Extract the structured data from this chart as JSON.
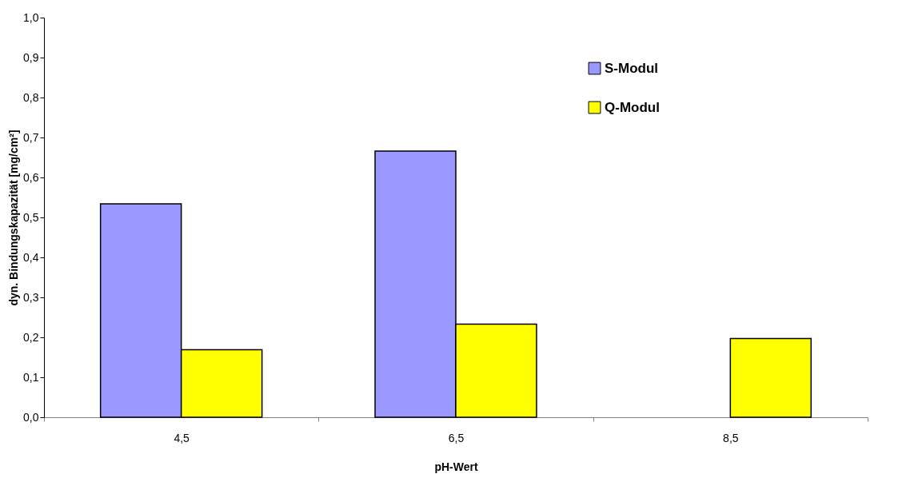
{
  "chart_data": {
    "type": "bar",
    "xlabel": "pH-Wert",
    "ylabel": "dyn. Bindungskapazität [mg/cm²]",
    "categories": [
      "4,5",
      "6,5",
      "8,5"
    ],
    "series": [
      {
        "name": "S-Modul",
        "color": "#9999ff",
        "values": [
          0.534,
          0.666,
          null
        ]
      },
      {
        "name": "Q-Modul",
        "color": "#ffff00",
        "values": [
          0.169,
          0.233,
          0.197
        ]
      }
    ],
    "ylim": [
      0,
      1.0
    ],
    "yticks": [
      {
        "value": 0,
        "label": "0,0"
      },
      {
        "value": 0.1,
        "label": "0,1"
      },
      {
        "value": 0.2,
        "label": "0,2"
      },
      {
        "value": 0.3,
        "label": "0,3"
      },
      {
        "value": 0.4,
        "label": "0,4"
      },
      {
        "value": 0.5,
        "label": "0,5"
      },
      {
        "value": 0.6,
        "label": "0,6"
      },
      {
        "value": 0.7,
        "label": "0,7"
      },
      {
        "value": 0.8,
        "label": "0,8"
      },
      {
        "value": 0.9,
        "label": "0,9"
      },
      {
        "value": 1.0,
        "label": "1,0"
      }
    ],
    "legend": "top right",
    "grid": false
  }
}
